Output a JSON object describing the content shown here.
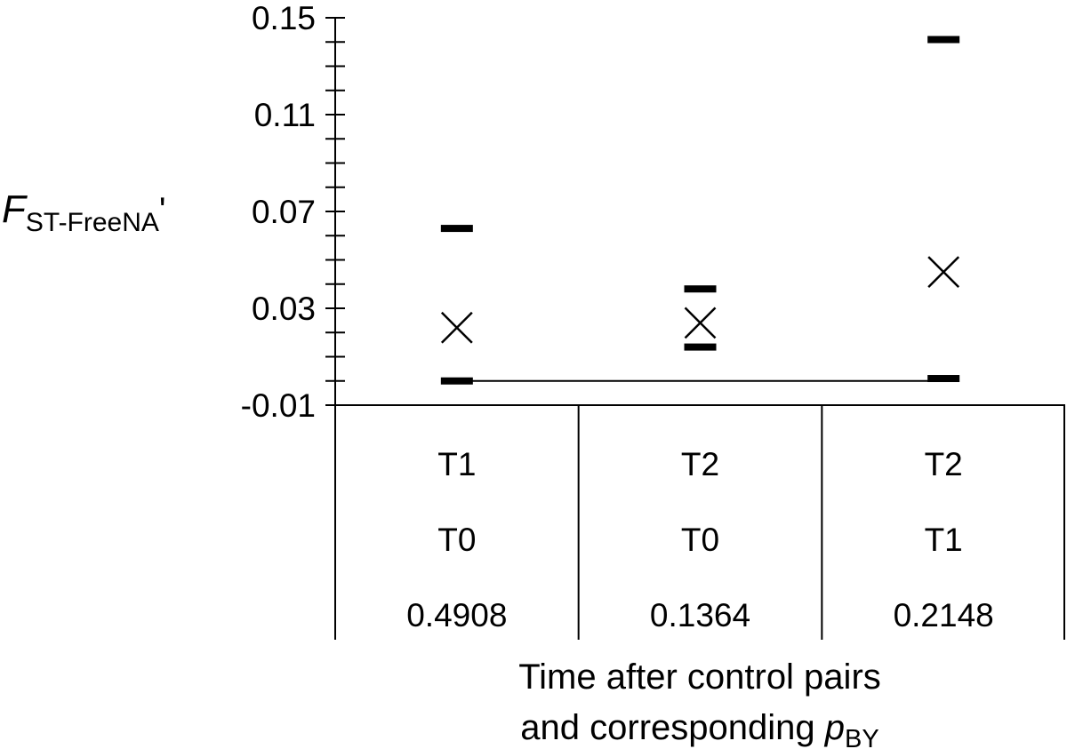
{
  "chart_data": {
    "type": "scatter",
    "title": "",
    "ylabel": {
      "main": "F",
      "subscript": "ST-FreeNA",
      "suffix": "'"
    },
    "xlabel": {
      "line1": "Time after control pairs",
      "line2_prefix": "and corresponding ",
      "symbol": "p",
      "subscript": "BY"
    },
    "ylim": [
      -0.01,
      0.15
    ],
    "yticks": [
      -0.01,
      0.03,
      0.07,
      0.11,
      0.15
    ],
    "ytick_labels": [
      "-0.01",
      "0.03",
      "0.07",
      "0.11",
      "0.15"
    ],
    "minor_tick_step": 0.01,
    "baseline": 0.0,
    "groups": [
      {
        "row1": "T1",
        "row2": "T0",
        "row3": "0.4908",
        "mean": 0.022,
        "lower": 0.0,
        "upper": 0.063
      },
      {
        "row1": "T2",
        "row2": "T0",
        "row3": "0.1364",
        "mean": 0.024,
        "lower": 0.014,
        "upper": 0.038
      },
      {
        "row1": "T2",
        "row2": "T1",
        "row3": "0.2148",
        "mean": 0.045,
        "lower": 0.001,
        "upper": 0.141
      }
    ]
  }
}
